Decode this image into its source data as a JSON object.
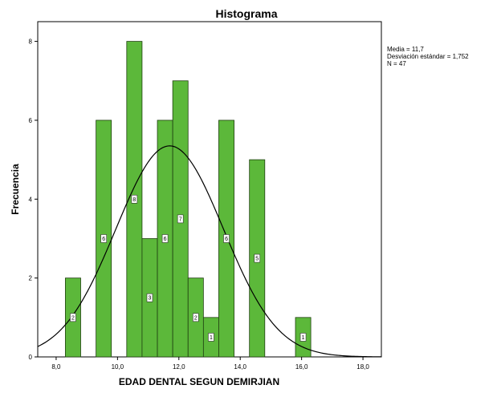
{
  "stats": {
    "mean_text": "Media = 11,7",
    "sd_text": "Desviación estándar = 1,752",
    "n_text": "N = 47"
  },
  "chart_data": {
    "type": "bar",
    "title": "Histograma",
    "xlabel": "EDAD DENTAL SEGUN DEMIRJIAN",
    "ylabel": "Frecuencia",
    "xlim": [
      7.4,
      18.6
    ],
    "ylim": [
      0,
      8.5
    ],
    "grid": false,
    "bar_color": "#5cb83a",
    "bar_edge_color": "#1f3f10",
    "curve_color": "#000000",
    "x_ticks": [
      {
        "value": 8,
        "label": "8,0"
      },
      {
        "value": 10,
        "label": "10,0"
      },
      {
        "value": 12,
        "label": "12,0"
      },
      {
        "value": 14,
        "label": "14,0"
      },
      {
        "value": 16,
        "label": "16,0"
      },
      {
        "value": 18,
        "label": "18,0"
      }
    ],
    "y_ticks": [
      {
        "value": 0,
        "label": "0"
      },
      {
        "value": 2,
        "label": "2"
      },
      {
        "value": 4,
        "label": "4"
      },
      {
        "value": 6,
        "label": "6"
      },
      {
        "value": 8,
        "label": "8"
      }
    ],
    "bins": [
      {
        "x_start": 8.3,
        "x_end": 8.8,
        "count": 2,
        "label": "2"
      },
      {
        "x_start": 9.3,
        "x_end": 9.8,
        "count": 6,
        "label": "6"
      },
      {
        "x_start": 10.3,
        "x_end": 10.8,
        "count": 8,
        "label": "8"
      },
      {
        "x_start": 10.8,
        "x_end": 11.3,
        "count": 3,
        "label": "3"
      },
      {
        "x_start": 11.3,
        "x_end": 11.8,
        "count": 6,
        "label": "6"
      },
      {
        "x_start": 11.8,
        "x_end": 12.3,
        "count": 7,
        "label": "7"
      },
      {
        "x_start": 12.3,
        "x_end": 12.8,
        "count": 2,
        "label": "2"
      },
      {
        "x_start": 12.8,
        "x_end": 13.3,
        "count": 1,
        "label": "1"
      },
      {
        "x_start": 13.3,
        "x_end": 13.8,
        "count": 6,
        "label": "6"
      },
      {
        "x_start": 14.3,
        "x_end": 14.8,
        "count": 5,
        "label": "5"
      },
      {
        "x_start": 15.8,
        "x_end": 16.3,
        "count": 1,
        "label": "1"
      }
    ],
    "normal_curve": {
      "mean": 11.7,
      "sd": 1.752,
      "n": 47,
      "bin_width": 0.5
    }
  }
}
